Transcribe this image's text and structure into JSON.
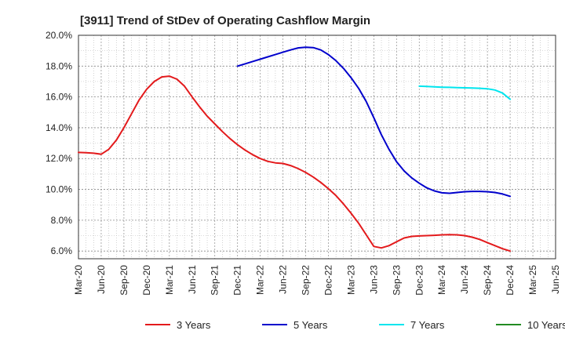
{
  "chart_data": {
    "type": "line",
    "title": "[3911]  Trend of StDev of Operating Cashflow Margin",
    "xlabel": "",
    "ylabel": "",
    "ylim": [
      5.5,
      20.0
    ],
    "y_ticks": [
      6.0,
      8.0,
      10.0,
      12.0,
      14.0,
      16.0,
      18.0,
      20.0
    ],
    "y_tick_labels": [
      "6.0%",
      "8.0%",
      "10.0%",
      "12.0%",
      "14.0%",
      "16.0%",
      "18.0%",
      "20.0%"
    ],
    "x_tick_labels": [
      "Mar-20",
      "Jun-20",
      "Sep-20",
      "Dec-20",
      "Mar-21",
      "Jun-21",
      "Sep-21",
      "Dec-21",
      "Mar-22",
      "Jun-22",
      "Sep-22",
      "Dec-22",
      "Mar-23",
      "Jun-23",
      "Sep-23",
      "Dec-23",
      "Mar-24",
      "Jun-24",
      "Sep-24",
      "Dec-24",
      "Mar-25",
      "Jun-25"
    ],
    "grid": true,
    "legend_position": "bottom",
    "series": [
      {
        "name": "3 Years",
        "color": "#e31a1c",
        "x": [
          "Mar-20",
          "Apr-20",
          "May-20",
          "Jun-20",
          "Jul-20",
          "Aug-20",
          "Sep-20",
          "Oct-20",
          "Nov-20",
          "Dec-20",
          "Jan-21",
          "Feb-21",
          "Mar-21",
          "Apr-21",
          "May-21",
          "Jun-21",
          "Jul-21",
          "Aug-21",
          "Sep-21",
          "Oct-21",
          "Nov-21",
          "Dec-21",
          "Jan-22",
          "Feb-22",
          "Mar-22",
          "Apr-22",
          "May-22",
          "Jun-22",
          "Jul-22",
          "Aug-22",
          "Sep-22",
          "Oct-22",
          "Nov-22",
          "Dec-22",
          "Jan-23",
          "Feb-23",
          "Mar-23",
          "Apr-23",
          "May-23",
          "Jun-23",
          "Jul-23",
          "Aug-23",
          "Sep-23",
          "Oct-23",
          "Nov-23",
          "Dec-23",
          "Jan-24",
          "Feb-24",
          "Mar-24",
          "Apr-24",
          "May-24",
          "Jun-24",
          "Jul-24",
          "Aug-24",
          "Sep-24",
          "Oct-24",
          "Nov-24",
          "Dec-24"
        ],
        "values": [
          12.4,
          12.38,
          12.35,
          12.28,
          12.6,
          13.2,
          14.0,
          14.9,
          15.8,
          16.5,
          17.0,
          17.3,
          17.35,
          17.15,
          16.7,
          16.0,
          15.35,
          14.75,
          14.25,
          13.75,
          13.3,
          12.9,
          12.55,
          12.25,
          12.0,
          11.82,
          11.72,
          11.68,
          11.55,
          11.35,
          11.1,
          10.8,
          10.45,
          10.05,
          9.6,
          9.05,
          8.45,
          7.8,
          7.05,
          6.3,
          6.2,
          6.35,
          6.6,
          6.85,
          6.95,
          6.98,
          7.0,
          7.02,
          7.05,
          7.06,
          7.05,
          7.0,
          6.9,
          6.75,
          6.55,
          6.35,
          6.15,
          6.0
        ]
      },
      {
        "name": "5 Years",
        "color": "#0000cc",
        "x": [
          "Dec-21",
          "Jan-22",
          "Feb-22",
          "Mar-22",
          "Apr-22",
          "May-22",
          "Jun-22",
          "Jul-22",
          "Aug-22",
          "Sep-22",
          "Oct-22",
          "Nov-22",
          "Dec-22",
          "Jan-23",
          "Feb-23",
          "Mar-23",
          "Apr-23",
          "May-23",
          "Jun-23",
          "Jul-23",
          "Aug-23",
          "Sep-23",
          "Oct-23",
          "Nov-23",
          "Dec-23",
          "Jan-24",
          "Feb-24",
          "Mar-24",
          "Apr-24",
          "May-24",
          "Jun-24",
          "Jul-24",
          "Aug-24",
          "Sep-24",
          "Oct-24",
          "Nov-24",
          "Dec-24"
        ],
        "values": [
          18.0,
          18.15,
          18.3,
          18.45,
          18.6,
          18.75,
          18.9,
          19.05,
          19.18,
          19.22,
          19.2,
          19.05,
          18.75,
          18.35,
          17.85,
          17.25,
          16.55,
          15.7,
          14.65,
          13.55,
          12.6,
          11.8,
          11.2,
          10.75,
          10.4,
          10.1,
          9.9,
          9.78,
          9.75,
          9.8,
          9.85,
          9.87,
          9.87,
          9.85,
          9.8,
          9.7,
          9.55
        ]
      },
      {
        "name": "7 Years",
        "color": "#00e5ee",
        "x": [
          "Dec-23",
          "Jan-24",
          "Feb-24",
          "Mar-24",
          "Apr-24",
          "May-24",
          "Jun-24",
          "Jul-24",
          "Aug-24",
          "Sep-24",
          "Oct-24",
          "Nov-24",
          "Dec-24"
        ],
        "values": [
          16.7,
          16.68,
          16.65,
          16.63,
          16.62,
          16.6,
          16.59,
          16.58,
          16.56,
          16.53,
          16.45,
          16.25,
          15.85
        ]
      },
      {
        "name": "10 Years",
        "color": "#228b22",
        "x": [],
        "values": []
      }
    ]
  }
}
